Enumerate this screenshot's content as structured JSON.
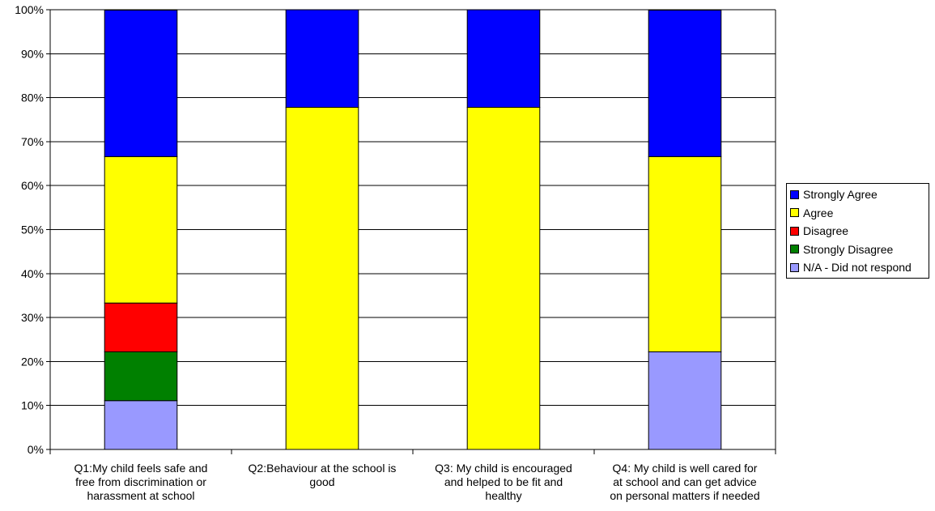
{
  "chart_data": {
    "type": "bar",
    "stacked": true,
    "percent": true,
    "categories": [
      "Q1:My child feels safe and free from discrimination or harassment at school",
      "Q2:Behaviour at the school is good",
      "Q3: My child is encouraged and helped to be fit and healthy",
      "Q4: My child is well cared for at school and can get advice on personal matters if needed"
    ],
    "category_lines": [
      [
        "Q1:My child feels safe and",
        "free from discrimination or",
        "harassment at school"
      ],
      [
        "Q2:Behaviour at the school is",
        "good"
      ],
      [
        "Q3: My child is encouraged",
        "and helped to be fit and",
        "healthy"
      ],
      [
        "Q4: My child is well cared for",
        "at school and can get advice",
        "on personal matters if needed"
      ]
    ],
    "series": [
      {
        "name": "N/A - Did not respond",
        "color": "#9999ff",
        "values": [
          11.1,
          0,
          0,
          22.2
        ]
      },
      {
        "name": "Strongly Disagree",
        "color": "#008000",
        "values": [
          11.1,
          0,
          0,
          0
        ]
      },
      {
        "name": "Disagree",
        "color": "#ff0000",
        "values": [
          11.1,
          0,
          0,
          0
        ]
      },
      {
        "name": "Agree",
        "color": "#ffff00",
        "values": [
          33.3,
          77.8,
          77.8,
          44.4
        ]
      },
      {
        "name": "Strongly Agree",
        "color": "#0000ff",
        "values": [
          33.3,
          22.2,
          22.2,
          33.3
        ]
      }
    ],
    "legend_order": [
      "Strongly Agree",
      "Agree",
      "Disagree",
      "Strongly Disagree",
      "N/A - Did not respond"
    ],
    "y_ticks": [
      "0%",
      "10%",
      "20%",
      "30%",
      "40%",
      "50%",
      "60%",
      "70%",
      "80%",
      "90%",
      "100%"
    ],
    "ylim": [
      0,
      100
    ],
    "grid": true,
    "legend_position": "right",
    "title": "",
    "xlabel": "",
    "ylabel": ""
  }
}
